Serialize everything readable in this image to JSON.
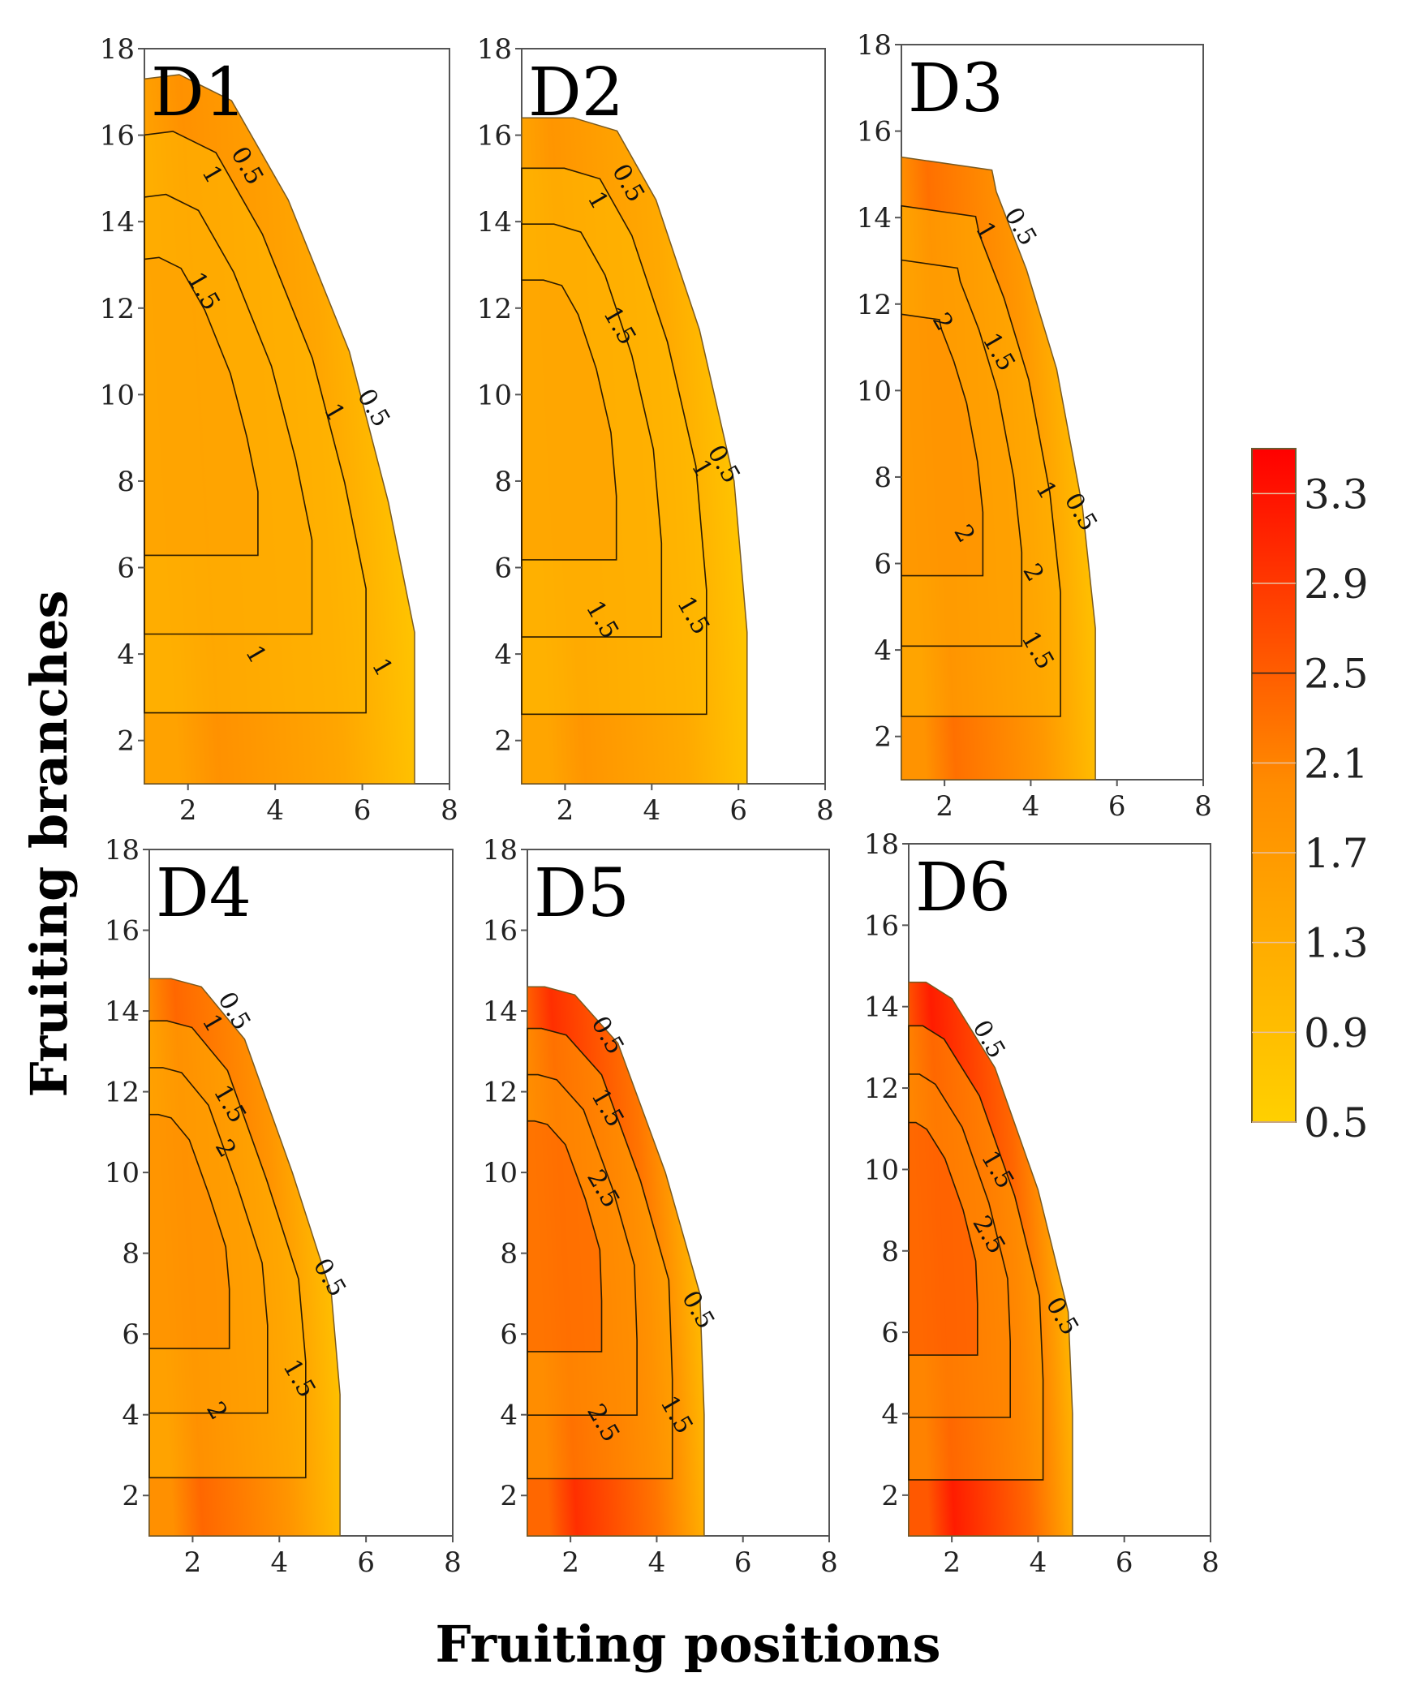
{
  "chart_data": {
    "type": "contour",
    "xlabel": "Fruiting positions",
    "ylabel": "Fruiting branches",
    "xlim": [
      1,
      8
    ],
    "ylim": [
      1,
      18
    ],
    "xticks": [
      2,
      4,
      6,
      8
    ],
    "yticks": [
      2,
      4,
      6,
      8,
      10,
      12,
      14,
      16,
      18
    ],
    "colorbar": {
      "ticks": [
        3.3,
        2.9,
        2.5,
        2.1,
        1.7,
        1.3,
        0.9,
        0.5
      ],
      "range": [
        0.5,
        3.5
      ],
      "colors": [
        "#FFD000",
        "#FF8C00",
        "#FF0000"
      ]
    },
    "panels": [
      {
        "name": "D1",
        "outline": [
          [
            1,
            1
          ],
          [
            7.2,
            1
          ],
          [
            7.2,
            4.5
          ],
          [
            6.6,
            7.5
          ],
          [
            5.7,
            11
          ],
          [
            4.3,
            14.5
          ],
          [
            3,
            16.8
          ],
          [
            1.8,
            17.4
          ],
          [
            1,
            17.3
          ]
        ],
        "max_value": 1.9,
        "contour_labels": [
          {
            "text": "0.5",
            "x": 3.2,
            "y": 15.2
          },
          {
            "text": "1",
            "x": 2.4,
            "y": 15.0
          },
          {
            "text": "1.5",
            "x": 2.2,
            "y": 12.3
          },
          {
            "text": "0.5",
            "x": 6.1,
            "y": 9.6
          },
          {
            "text": "1",
            "x": 5.2,
            "y": 9.5
          },
          {
            "text": "1",
            "x": 3.4,
            "y": 3.9
          },
          {
            "text": "1",
            "x": 6.3,
            "y": 3.6
          }
        ]
      },
      {
        "name": "D2",
        "outline": [
          [
            1,
            1
          ],
          [
            6.2,
            1
          ],
          [
            6.2,
            4.5
          ],
          [
            5.9,
            8
          ],
          [
            5.1,
            11.5
          ],
          [
            4.1,
            14.5
          ],
          [
            3.2,
            16.1
          ],
          [
            2.2,
            16.4
          ],
          [
            1,
            16.4
          ]
        ],
        "max_value": 1.8,
        "contour_labels": [
          {
            "text": "0.5",
            "x": 3.3,
            "y": 14.8
          },
          {
            "text": "1",
            "x": 2.6,
            "y": 14.4
          },
          {
            "text": "1.5",
            "x": 3.1,
            "y": 11.5
          },
          {
            "text": "0.5",
            "x": 5.5,
            "y": 8.3
          },
          {
            "text": "1",
            "x": 5.0,
            "y": 8.2
          },
          {
            "text": "1.5",
            "x": 2.7,
            "y": 4.7
          },
          {
            "text": "1.5",
            "x": 4.8,
            "y": 4.8
          }
        ]
      },
      {
        "name": "D3",
        "outline": [
          [
            1,
            1
          ],
          [
            5.5,
            1
          ],
          [
            5.5,
            4.5
          ],
          [
            5.2,
            7.3
          ],
          [
            4.6,
            10.5
          ],
          [
            3.9,
            12.8
          ],
          [
            3.2,
            14.6
          ],
          [
            3.1,
            15.1
          ],
          [
            1,
            15.4
          ]
        ],
        "max_value": 2.3,
        "contour_labels": [
          {
            "text": "0.5",
            "x": 3.6,
            "y": 13.7
          },
          {
            "text": "1",
            "x": 2.8,
            "y": 13.6
          },
          {
            "text": "2",
            "x": 1.8,
            "y": 11.5
          },
          {
            "text": "1.5",
            "x": 3.1,
            "y": 10.8
          },
          {
            "text": "1",
            "x": 4.2,
            "y": 7.6
          },
          {
            "text": "0.5",
            "x": 5.0,
            "y": 7.1
          },
          {
            "text": "2",
            "x": 2.3,
            "y": 6.6
          },
          {
            "text": "2",
            "x": 3.9,
            "y": 5.7
          },
          {
            "text": "1.5",
            "x": 4.0,
            "y": 3.9
          }
        ]
      },
      {
        "name": "D4",
        "outline": [
          [
            1,
            1
          ],
          [
            5.4,
            1
          ],
          [
            5.4,
            4.5
          ],
          [
            5.2,
            7
          ],
          [
            4.3,
            10
          ],
          [
            3.2,
            13.3
          ],
          [
            2.2,
            14.6
          ],
          [
            1.5,
            14.8
          ],
          [
            1,
            14.8
          ]
        ],
        "max_value": 2.4,
        "contour_labels": [
          {
            "text": "0.5",
            "x": 2.8,
            "y": 13.9
          },
          {
            "text": "1",
            "x": 2.3,
            "y": 13.6
          },
          {
            "text": "1.5",
            "x": 2.7,
            "y": 11.6
          },
          {
            "text": "2",
            "x": 2.6,
            "y": 10.5
          },
          {
            "text": "0.5",
            "x": 5.0,
            "y": 7.3
          },
          {
            "text": "1.5",
            "x": 4.3,
            "y": 4.8
          },
          {
            "text": "2",
            "x": 2.4,
            "y": 4.0
          }
        ]
      },
      {
        "name": "D5",
        "outline": [
          [
            1,
            1
          ],
          [
            5.1,
            1
          ],
          [
            5.1,
            4
          ],
          [
            5.0,
            7
          ],
          [
            4.2,
            10
          ],
          [
            3.1,
            13.2
          ],
          [
            2.1,
            14.4
          ],
          [
            1.4,
            14.6
          ],
          [
            1,
            14.6
          ]
        ],
        "max_value": 3.0,
        "contour_labels": [
          {
            "text": "0.5",
            "x": 2.7,
            "y": 13.3
          },
          {
            "text": "1.5",
            "x": 2.7,
            "y": 11.5
          },
          {
            "text": "2.5",
            "x": 2.6,
            "y": 9.5
          },
          {
            "text": "0.5",
            "x": 4.8,
            "y": 6.5
          },
          {
            "text": "1.5",
            "x": 4.3,
            "y": 3.9
          },
          {
            "text": "2.5",
            "x": 2.6,
            "y": 3.7
          }
        ]
      },
      {
        "name": "D6",
        "outline": [
          [
            1,
            1
          ],
          [
            4.8,
            1
          ],
          [
            4.8,
            4
          ],
          [
            4.7,
            6.5
          ],
          [
            4.0,
            9.5
          ],
          [
            3.0,
            12.5
          ],
          [
            2.0,
            14.2
          ],
          [
            1.4,
            14.6
          ],
          [
            1,
            14.6
          ]
        ],
        "max_value": 3.2,
        "contour_labels": [
          {
            "text": "0.5",
            "x": 2.7,
            "y": 13.1
          },
          {
            "text": "1.5",
            "x": 2.9,
            "y": 9.9
          },
          {
            "text": "2.5",
            "x": 2.7,
            "y": 8.3
          },
          {
            "text": "0.5",
            "x": 4.4,
            "y": 6.3
          }
        ]
      }
    ]
  }
}
